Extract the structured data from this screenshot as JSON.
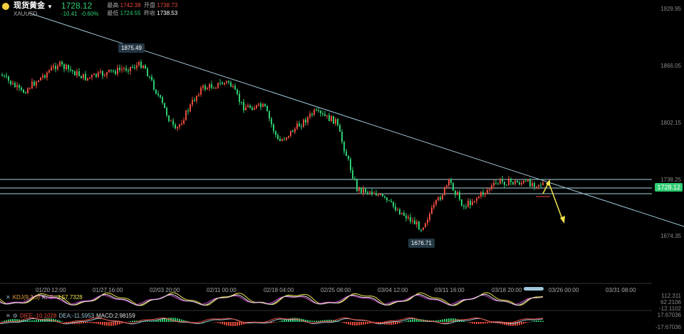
{
  "header": {
    "name": "现货黄金",
    "symbol": "XAUUSD",
    "price": "1728.12",
    "change": "-10.41",
    "change_pct": "-0.60%",
    "high_label": "最高",
    "high": "1742.38",
    "open_label": "开盘",
    "open": "1738.73",
    "low_label": "最低",
    "low": "1724.55",
    "prev_label": "昨收",
    "prev": "1738.53"
  },
  "y_labels": [
    "1929.95",
    "1866.05",
    "1802.15",
    "1738.25",
    "1674.35"
  ],
  "x_labels": [
    "01/20 12:00",
    "01/27 16:00",
    "02/03 20:00",
    "02/11 00:00",
    "02/18 04:00",
    "02/25 08:00",
    "03/04 12:00",
    "03/11 16:00",
    "03/18 20:00",
    "03/26 00:00",
    "03/31 08:00"
  ],
  "tooltips": {
    "high": "1875.49",
    "low": "1676.71"
  },
  "current_tag": "1728.12",
  "kdj": {
    "label": "KDJ(9,3,3)",
    "k": "K:",
    "d": "D:",
    "j": "J:57.7328",
    "scale": [
      "112.311",
      "62.2106",
      "-12.1102"
    ]
  },
  "macd": {
    "diff": "DIFF:-10.1028",
    "dea": "DEA:-11.5953",
    "macd": "MACD:2.98159",
    "scale": [
      "17.67036",
      "-17.67036"
    ]
  },
  "colors": {
    "up": "#e74c3c",
    "down": "#2ecc71",
    "trend": "#9fc6d8",
    "arrow": "#f1e34a"
  }
}
